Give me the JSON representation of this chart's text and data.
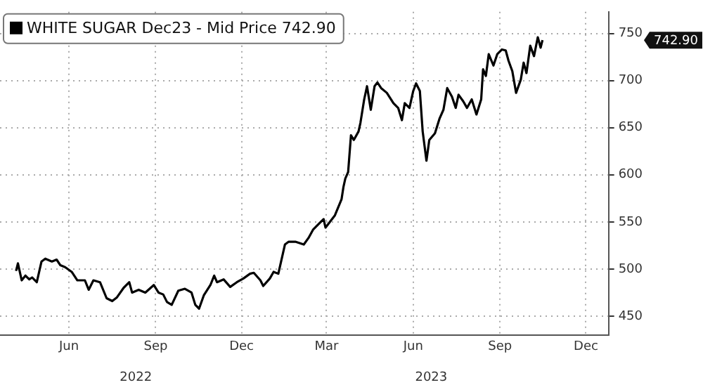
{
  "chart_data": {
    "type": "line",
    "legend": "top left",
    "grid": true,
    "line_style": "solid",
    "marker": "none",
    "xlim": [
      "2022-03-20",
      "2023-12-25"
    ],
    "xticks": [
      {
        "value": "2022-06-01",
        "label": "Jun"
      },
      {
        "value": "2022-09-01",
        "label": "Sep"
      },
      {
        "value": "2022-12-01",
        "label": "Dec"
      },
      {
        "value": "2023-03-01",
        "label": "Mar"
      },
      {
        "value": "2023-06-01",
        "label": "Jun"
      },
      {
        "value": "2023-09-01",
        "label": "Sep"
      },
      {
        "value": "2023-12-01",
        "label": "Dec"
      }
    ],
    "x2lim": [
      "2022-03-20",
      "2023-12-25"
    ],
    "x2ticks": [
      {
        "value": "2022-08-11",
        "label": "2022"
      },
      {
        "value": "2023-06-20",
        "label": "2023"
      }
    ],
    "ylim": [
      430,
      773
    ],
    "yticks": [
      450,
      500,
      550,
      600,
      650,
      700,
      750
    ],
    "annotations": [
      "742.90"
    ],
    "series": [
      {
        "name": "WHITE SUGAR Dec23 - Mid Price 742.90",
        "color": "#000000",
        "x": [
          "2022-04-06",
          "2022-04-08",
          "2022-04-12",
          "2022-04-16",
          "2022-04-20",
          "2022-04-23",
          "2022-04-28",
          "2022-05-03",
          "2022-05-07",
          "2022-05-14",
          "2022-05-19",
          "2022-05-23",
          "2022-05-28",
          "2022-06-04",
          "2022-06-10",
          "2022-06-18",
          "2022-06-22",
          "2022-06-27",
          "2022-07-04",
          "2022-07-11",
          "2022-07-17",
          "2022-07-22",
          "2022-07-29",
          "2022-08-04",
          "2022-08-07",
          "2022-08-14",
          "2022-08-21",
          "2022-08-30",
          "2022-09-04",
          "2022-09-09",
          "2022-09-13",
          "2022-09-18",
          "2022-09-25",
          "2022-10-02",
          "2022-10-09",
          "2022-10-13",
          "2022-10-17",
          "2022-10-22",
          "2022-10-29",
          "2022-11-02",
          "2022-11-05",
          "2022-11-12",
          "2022-11-19",
          "2022-11-26",
          "2022-12-03",
          "2022-12-10",
          "2022-12-14",
          "2022-12-21",
          "2022-12-24",
          "2022-12-31",
          "2023-01-04",
          "2023-01-09",
          "2023-01-16",
          "2023-01-20",
          "2023-01-27",
          "2023-02-05",
          "2023-02-10",
          "2023-02-15",
          "2023-02-22",
          "2023-02-26",
          "2023-02-28",
          "2023-03-10",
          "2023-03-17",
          "2023-03-19",
          "2023-03-21",
          "2023-03-24",
          "2023-03-27",
          "2023-03-30",
          "2023-04-04",
          "2023-04-06",
          "2023-04-10",
          "2023-04-13",
          "2023-04-17",
          "2023-04-21",
          "2023-04-24",
          "2023-04-28",
          "2023-05-04",
          "2023-05-11",
          "2023-05-16",
          "2023-05-20",
          "2023-05-23",
          "2023-05-28",
          "2023-06-01",
          "2023-06-04",
          "2023-06-08",
          "2023-06-11",
          "2023-06-15",
          "2023-06-18",
          "2023-06-24",
          "2023-06-29",
          "2023-07-03",
          "2023-07-07",
          "2023-07-12",
          "2023-07-16",
          "2023-07-19",
          "2023-07-24",
          "2023-07-28",
          "2023-08-02",
          "2023-08-07",
          "2023-08-12",
          "2023-08-14",
          "2023-08-17",
          "2023-08-20",
          "2023-08-25",
          "2023-08-29",
          "2023-09-03",
          "2023-09-07",
          "2023-09-10",
          "2023-09-14",
          "2023-09-18",
          "2023-09-23",
          "2023-09-26",
          "2023-09-29",
          "2023-10-03",
          "2023-10-07",
          "2023-10-11",
          "2023-10-14",
          "2023-10-16"
        ],
        "values": [
          498,
          506,
          488,
          493,
          489,
          491,
          486,
          508,
          511,
          508,
          510,
          504,
          502,
          497,
          488,
          488,
          478,
          488,
          486,
          469,
          466,
          470,
          480,
          486,
          475,
          478,
          475,
          483,
          475,
          473,
          465,
          462,
          477,
          479,
          475,
          462,
          458,
          472,
          483,
          493,
          486,
          489,
          481,
          486,
          490,
          495,
          496,
          488,
          482,
          490,
          497,
          495,
          526,
          529,
          529,
          526,
          533,
          542,
          549,
          553,
          544,
          557,
          574,
          587,
          596,
          603,
          642,
          637,
          646,
          655,
          680,
          694,
          669,
          694,
          698,
          692,
          687,
          676,
          671,
          658,
          676,
          671,
          689,
          697,
          689,
          646,
          615,
          637,
          644,
          660,
          669,
          692,
          683,
          671,
          685,
          678,
          671,
          680,
          664,
          680,
          712,
          705,
          728,
          716,
          728,
          733,
          732,
          721,
          710,
          687,
          701,
          719,
          708,
          737,
          726,
          746,
          735,
          742.9
        ]
      }
    ]
  }
}
